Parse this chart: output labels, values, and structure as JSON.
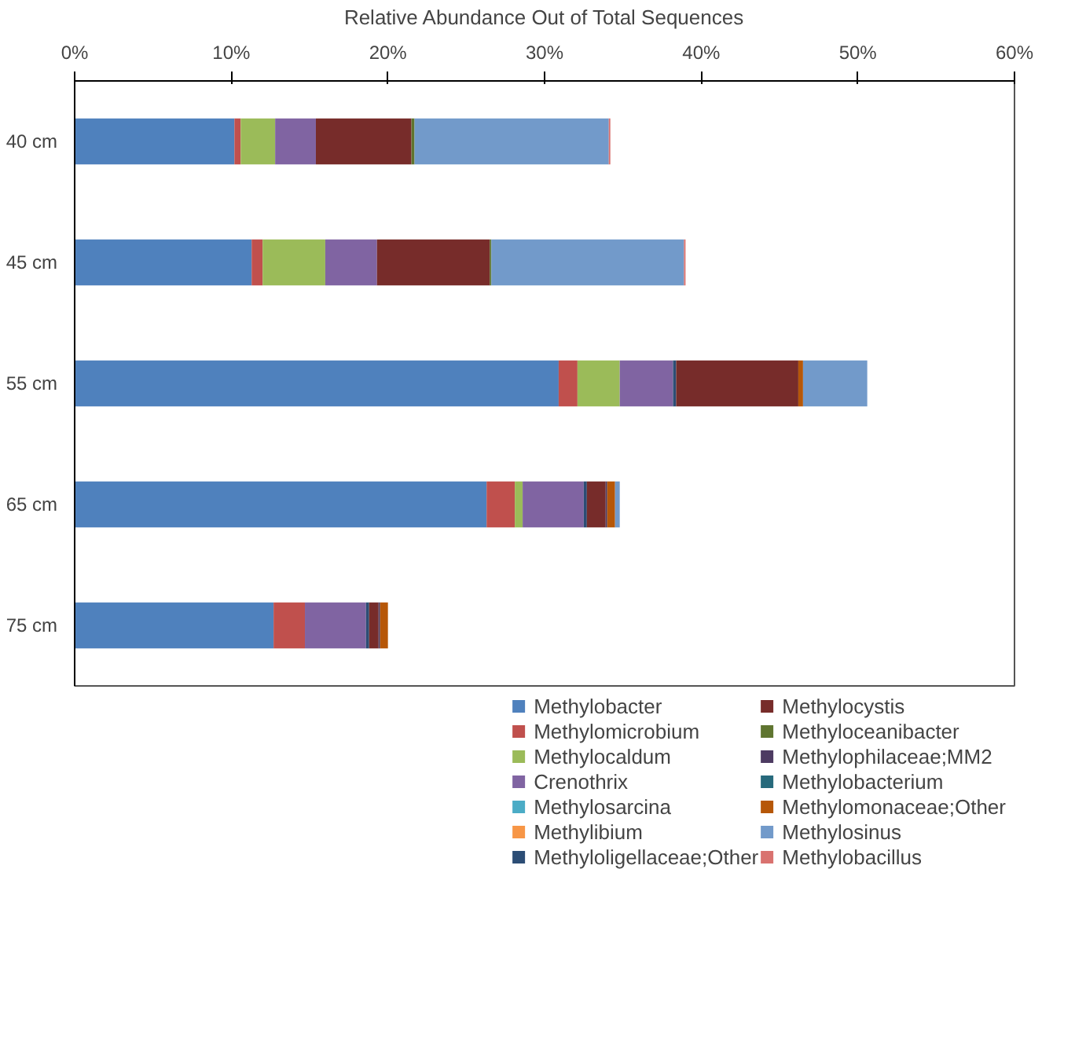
{
  "chart_data": {
    "type": "bar",
    "orientation": "horizontal",
    "stacked": true,
    "xlabel": "Relative Abundance Out of Total Sequences",
    "categories": [
      "40 cm",
      "45 cm",
      "55 cm",
      "65 cm",
      "75 cm"
    ],
    "xlim": [
      0,
      60
    ],
    "xticks": [
      {
        "value": 0,
        "label": "0%"
      },
      {
        "value": 10,
        "label": "10%"
      },
      {
        "value": 20,
        "label": "20%"
      },
      {
        "value": 30,
        "label": "30%"
      },
      {
        "value": 40,
        "label": "40%"
      },
      {
        "value": 50,
        "label": "50%"
      },
      {
        "value": 60,
        "label": "60%"
      }
    ],
    "grid": false,
    "legend": "bottom",
    "series": [
      {
        "name": "Methylobacter",
        "color": "#4f81bd",
        "values": [
          10.2,
          11.3,
          30.9,
          26.3,
          12.7
        ]
      },
      {
        "name": "Methylomicrobium",
        "color": "#c0504d",
        "values": [
          0.4,
          0.7,
          1.2,
          1.8,
          2.0
        ]
      },
      {
        "name": "Methylocaldum",
        "color": "#9bbb59",
        "values": [
          2.2,
          4.0,
          2.7,
          0.5,
          0
        ]
      },
      {
        "name": "Crenothrix",
        "color": "#8064a2",
        "values": [
          2.6,
          3.3,
          3.4,
          3.9,
          3.9
        ]
      },
      {
        "name": "Methylosarcina",
        "color": "#4bacc6",
        "values": [
          0,
          0,
          0,
          0,
          0
        ]
      },
      {
        "name": "Methylibium",
        "color": "#f79646",
        "values": [
          0,
          0,
          0,
          0,
          0
        ]
      },
      {
        "name": "Methyloligellaceae;Other",
        "color": "#2c4d75",
        "values": [
          0,
          0,
          0.2,
          0.2,
          0.2
        ]
      },
      {
        "name": "Methylocystis",
        "color": "#772c2a",
        "values": [
          6.1,
          7.2,
          7.8,
          1.2,
          0.6
        ]
      },
      {
        "name": "Methyloceanibacter",
        "color": "#5f7530",
        "values": [
          0.2,
          0.1,
          0,
          0,
          0
        ]
      },
      {
        "name": "Methylophilaceae;MM2",
        "color": "#4d3b62",
        "values": [
          0,
          0,
          0,
          0.1,
          0.1
        ]
      },
      {
        "name": "Methylobacterium",
        "color": "#276a7c",
        "values": [
          0,
          0,
          0,
          0,
          0
        ]
      },
      {
        "name": "Methylomonaceae;Other",
        "color": "#b65708",
        "values": [
          0,
          0,
          0.3,
          0.5,
          0.5
        ]
      },
      {
        "name": "Methylosinus",
        "color": "#729aca",
        "values": [
          12.4,
          12.3,
          4.1,
          0.3,
          0
        ]
      },
      {
        "name": "Methylobacillus",
        "color": "#d9726f",
        "values": [
          0.1,
          0.1,
          0,
          0,
          0
        ]
      }
    ]
  }
}
